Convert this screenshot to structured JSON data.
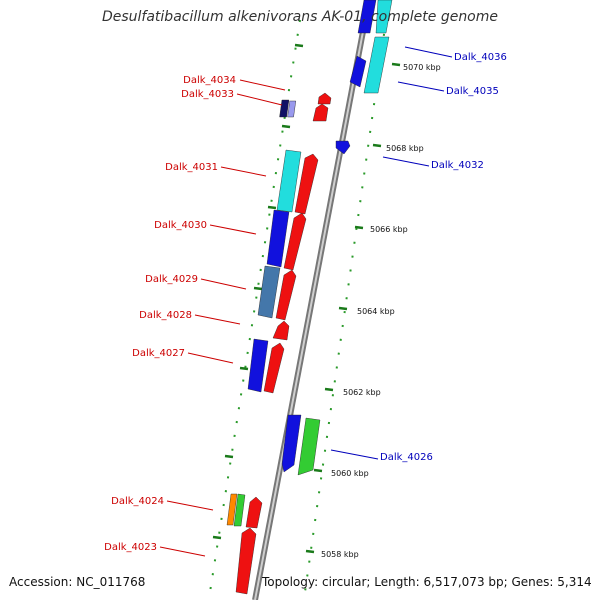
{
  "title": "Desulfatibacillum alkenivorans AK-01, complete genome",
  "accession": "Accession: NC_011768",
  "topology": "Topology: circular; Length: 6,517,073 bp; Genes: 5,314",
  "colors": {
    "backbone": "#9a9a9a",
    "ring_dots": "#2a9a2a",
    "forward": "#ee1111",
    "reverse": "#1111dd",
    "cyan": "#22dddd",
    "steelblue": "#4477aa",
    "navy": "#111166",
    "lavender": "#9999ee",
    "green": "#33cc33",
    "orange": "#ff8800",
    "label_left": "#cc0000",
    "label_right": "#0000bb"
  },
  "ticks": [
    "5070 kbp",
    "5068 kbp",
    "5066 kbp",
    "5064 kbp",
    "5062 kbp",
    "5060 kbp",
    "5058 kbp"
  ],
  "gene_labels": {
    "left": [
      "Dalk_4034",
      "Dalk_4033",
      "Dalk_4031",
      "Dalk_4030",
      "Dalk_4029",
      "Dalk_4028",
      "Dalk_4027",
      "Dalk_4024",
      "Dalk_4023"
    ],
    "right": [
      "Dalk_4036",
      "Dalk_4035",
      "Dalk_4032",
      "Dalk_4026"
    ]
  }
}
